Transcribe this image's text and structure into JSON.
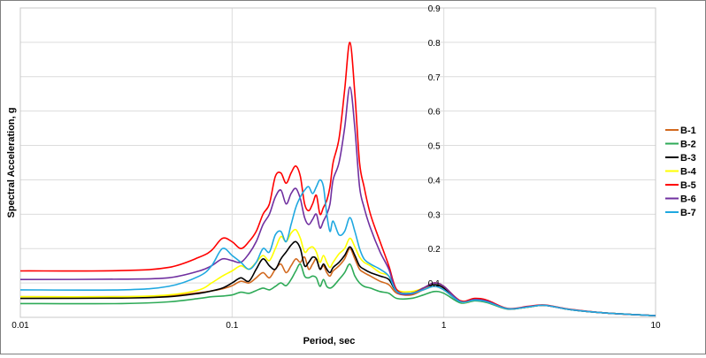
{
  "chart_data": {
    "type": "line",
    "xlabel": "Period, sec",
    "ylabel": "Spectral Acceleration, g",
    "xscale": "log",
    "xlim": [
      0.01,
      10
    ],
    "ylim": [
      0,
      0.9
    ],
    "x_ticks": [
      "0.01",
      "0.1",
      "1",
      "10"
    ],
    "y_ticks": [
      "0.1",
      "0.2",
      "0.3",
      "0.4",
      "0.5",
      "0.6",
      "0.7",
      "0.8",
      "0.9"
    ],
    "grid": true,
    "legend_position": "right",
    "x": [
      0.01,
      0.03,
      0.05,
      0.07,
      0.08,
      0.09,
      0.1,
      0.11,
      0.12,
      0.13,
      0.14,
      0.15,
      0.16,
      0.17,
      0.18,
      0.19,
      0.2,
      0.21,
      0.22,
      0.23,
      0.24,
      0.25,
      0.26,
      0.27,
      0.28,
      0.29,
      0.3,
      0.32,
      0.34,
      0.36,
      0.38,
      0.4,
      0.42,
      0.45,
      0.5,
      0.55,
      0.6,
      0.7,
      0.8,
      0.9,
      1.0,
      1.2,
      1.4,
      1.6,
      2.0,
      2.5,
      3.0,
      4.0,
      6.0,
      10.0
    ],
    "series": [
      {
        "name": "B-1",
        "color": "#d2691e",
        "values": [
          0.06,
          0.06,
          0.063,
          0.072,
          0.077,
          0.083,
          0.092,
          0.105,
          0.1,
          0.115,
          0.13,
          0.115,
          0.14,
          0.155,
          0.13,
          0.15,
          0.17,
          0.16,
          0.175,
          0.14,
          0.155,
          0.17,
          0.14,
          0.15,
          0.13,
          0.12,
          0.135,
          0.15,
          0.17,
          0.2,
          0.17,
          0.14,
          0.13,
          0.12,
          0.105,
          0.095,
          0.07,
          0.065,
          0.08,
          0.09,
          0.08,
          0.045,
          0.05,
          0.045,
          0.025,
          0.03,
          0.035,
          0.022,
          0.012,
          0.005
        ]
      },
      {
        "name": "B-2",
        "color": "#2eaa57",
        "values": [
          0.04,
          0.04,
          0.045,
          0.055,
          0.06,
          0.062,
          0.065,
          0.073,
          0.07,
          0.078,
          0.085,
          0.08,
          0.09,
          0.1,
          0.092,
          0.11,
          0.135,
          0.155,
          0.12,
          0.115,
          0.12,
          0.115,
          0.09,
          0.11,
          0.09,
          0.085,
          0.09,
          0.11,
          0.13,
          0.155,
          0.12,
          0.1,
          0.09,
          0.085,
          0.075,
          0.07,
          0.055,
          0.055,
          0.065,
          0.075,
          0.07,
          0.042,
          0.048,
          0.043,
          0.024,
          0.03,
          0.035,
          0.022,
          0.012,
          0.005
        ]
      },
      {
        "name": "B-3",
        "color": "#000000",
        "values": [
          0.055,
          0.056,
          0.06,
          0.07,
          0.077,
          0.085,
          0.1,
          0.115,
          0.105,
          0.14,
          0.17,
          0.15,
          0.14,
          0.17,
          0.19,
          0.21,
          0.22,
          0.2,
          0.15,
          0.16,
          0.175,
          0.17,
          0.14,
          0.155,
          0.14,
          0.13,
          0.145,
          0.16,
          0.18,
          0.205,
          0.18,
          0.15,
          0.14,
          0.13,
          0.12,
          0.11,
          0.075,
          0.07,
          0.085,
          0.095,
          0.085,
          0.045,
          0.05,
          0.045,
          0.025,
          0.03,
          0.035,
          0.022,
          0.012,
          0.005
        ]
      },
      {
        "name": "B-4",
        "color": "#ffff00",
        "values": [
          0.06,
          0.06,
          0.065,
          0.08,
          0.1,
          0.12,
          0.135,
          0.15,
          0.14,
          0.16,
          0.18,
          0.165,
          0.2,
          0.235,
          0.22,
          0.245,
          0.255,
          0.23,
          0.19,
          0.2,
          0.205,
          0.19,
          0.16,
          0.18,
          0.16,
          0.145,
          0.16,
          0.185,
          0.2,
          0.23,
          0.205,
          0.175,
          0.16,
          0.15,
          0.13,
          0.12,
          0.08,
          0.075,
          0.085,
          0.1,
          0.09,
          0.045,
          0.05,
          0.045,
          0.025,
          0.03,
          0.035,
          0.022,
          0.012,
          0.005
        ]
      },
      {
        "name": "B-5",
        "color": "#ff0000",
        "values": [
          0.135,
          0.136,
          0.145,
          0.175,
          0.195,
          0.23,
          0.22,
          0.2,
          0.22,
          0.25,
          0.3,
          0.33,
          0.41,
          0.42,
          0.39,
          0.42,
          0.44,
          0.41,
          0.33,
          0.31,
          0.33,
          0.355,
          0.3,
          0.32,
          0.34,
          0.38,
          0.45,
          0.52,
          0.66,
          0.8,
          0.65,
          0.45,
          0.38,
          0.3,
          0.22,
          0.15,
          0.08,
          0.07,
          0.085,
          0.1,
          0.09,
          0.048,
          0.055,
          0.05,
          0.026,
          0.032,
          0.036,
          0.023,
          0.012,
          0.005
        ]
      },
      {
        "name": "B-6",
        "color": "#7030a0",
        "values": [
          0.11,
          0.111,
          0.115,
          0.135,
          0.15,
          0.17,
          0.165,
          0.16,
          0.185,
          0.22,
          0.27,
          0.3,
          0.35,
          0.37,
          0.33,
          0.36,
          0.375,
          0.345,
          0.29,
          0.27,
          0.285,
          0.3,
          0.26,
          0.28,
          0.3,
          0.33,
          0.4,
          0.45,
          0.55,
          0.67,
          0.55,
          0.38,
          0.32,
          0.26,
          0.19,
          0.14,
          0.075,
          0.068,
          0.085,
          0.1,
          0.09,
          0.046,
          0.052,
          0.047,
          0.025,
          0.031,
          0.035,
          0.022,
          0.012,
          0.005
        ]
      },
      {
        "name": "B-7",
        "color": "#1fa8e0",
        "values": [
          0.08,
          0.08,
          0.09,
          0.12,
          0.15,
          0.2,
          0.18,
          0.16,
          0.14,
          0.16,
          0.2,
          0.19,
          0.24,
          0.25,
          0.22,
          0.27,
          0.32,
          0.35,
          0.37,
          0.38,
          0.36,
          0.38,
          0.4,
          0.38,
          0.3,
          0.25,
          0.28,
          0.24,
          0.25,
          0.29,
          0.25,
          0.2,
          0.17,
          0.155,
          0.14,
          0.12,
          0.075,
          0.07,
          0.08,
          0.09,
          0.08,
          0.045,
          0.05,
          0.045,
          0.025,
          0.03,
          0.035,
          0.022,
          0.012,
          0.005
        ]
      }
    ]
  }
}
